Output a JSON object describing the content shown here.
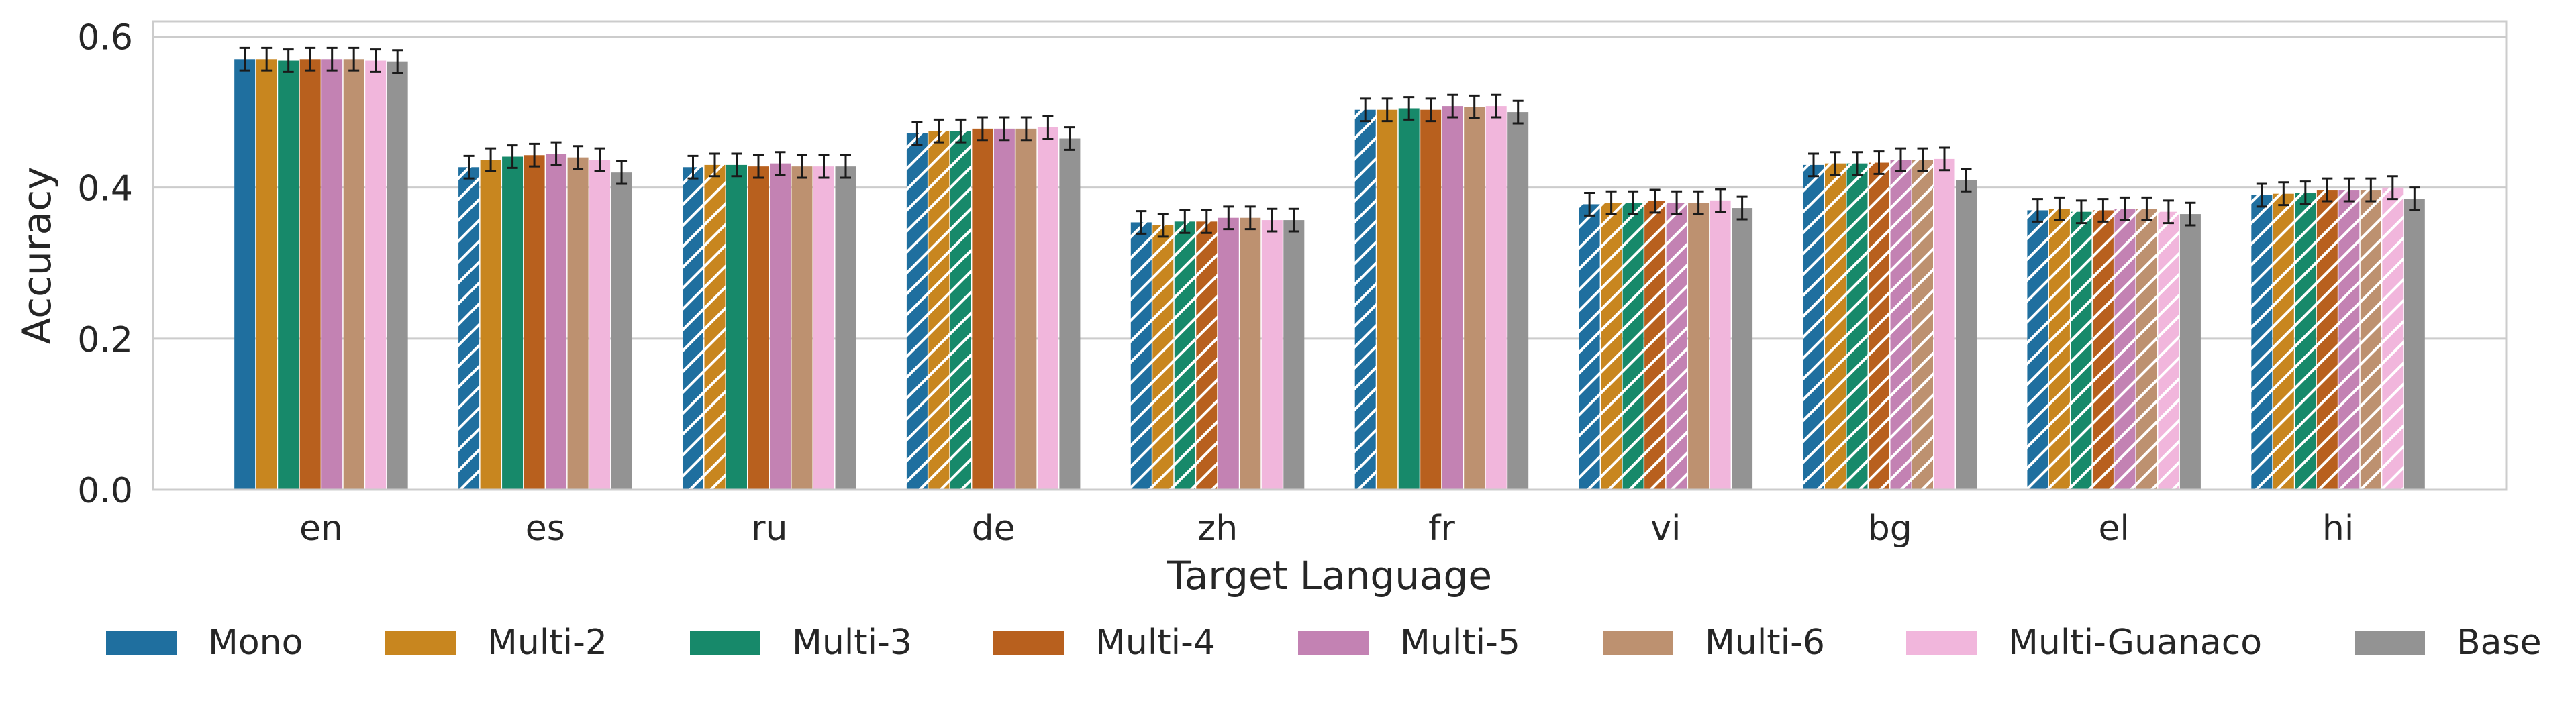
{
  "chart_data": {
    "type": "bar",
    "xlabel": "Target Language",
    "ylabel": "Accuracy",
    "ylim": [
      0,
      0.62
    ],
    "yticks": [
      0.0,
      0.2,
      0.4,
      0.6
    ],
    "ytick_labels": [
      "0.0",
      "0.2",
      "0.4",
      "0.6"
    ],
    "grid": true,
    "legend_position": "bottom",
    "categories": [
      "en",
      "es",
      "ru",
      "de",
      "zh",
      "fr",
      "vi",
      "bg",
      "el",
      "hi"
    ],
    "hatch_note": "Hatched bars = non-English target for models; hatched pattern applied on non-en groups for languages not in that model's training mix",
    "series": [
      {
        "name": "Mono",
        "color": "#1f6f9f",
        "values": [
          0.57,
          0.427,
          0.427,
          0.472,
          0.354,
          0.503,
          0.378,
          0.43,
          0.37,
          0.39
        ],
        "errors": [
          0.015,
          0.015,
          0.015,
          0.015,
          0.015,
          0.015,
          0.015,
          0.015,
          0.015,
          0.015
        ],
        "hatched": [
          false,
          true,
          true,
          true,
          true,
          true,
          true,
          true,
          true,
          true
        ]
      },
      {
        "name": "Multi-2",
        "color": "#c8861f",
        "values": [
          0.57,
          0.437,
          0.43,
          0.475,
          0.35,
          0.503,
          0.38,
          0.432,
          0.372,
          0.392
        ],
        "errors": [
          0.015,
          0.015,
          0.015,
          0.015,
          0.015,
          0.015,
          0.015,
          0.015,
          0.015,
          0.015
        ],
        "hatched": [
          false,
          false,
          true,
          true,
          true,
          false,
          true,
          true,
          true,
          true
        ]
      },
      {
        "name": "Multi-3",
        "color": "#17896a",
        "values": [
          0.568,
          0.441,
          0.43,
          0.475,
          0.355,
          0.505,
          0.38,
          0.432,
          0.368,
          0.393
        ],
        "errors": [
          0.015,
          0.015,
          0.015,
          0.015,
          0.015,
          0.015,
          0.015,
          0.015,
          0.015,
          0.015
        ],
        "hatched": [
          false,
          false,
          false,
          true,
          true,
          false,
          true,
          true,
          true,
          true
        ]
      },
      {
        "name": "Multi-4",
        "color": "#b8601e",
        "values": [
          0.57,
          0.443,
          0.428,
          0.478,
          0.355,
          0.503,
          0.382,
          0.433,
          0.37,
          0.397
        ],
        "errors": [
          0.015,
          0.015,
          0.015,
          0.015,
          0.015,
          0.015,
          0.015,
          0.015,
          0.015,
          0.015
        ],
        "hatched": [
          false,
          false,
          false,
          false,
          true,
          false,
          true,
          true,
          true,
          true
        ]
      },
      {
        "name": "Multi-5",
        "color": "#c382b3",
        "values": [
          0.57,
          0.445,
          0.432,
          0.478,
          0.36,
          0.508,
          0.38,
          0.437,
          0.372,
          0.397
        ],
        "errors": [
          0.015,
          0.015,
          0.015,
          0.015,
          0.015,
          0.015,
          0.015,
          0.015,
          0.015,
          0.015
        ],
        "hatched": [
          false,
          false,
          false,
          false,
          false,
          false,
          true,
          true,
          true,
          true
        ]
      },
      {
        "name": "Multi-6",
        "color": "#bd9170",
        "values": [
          0.57,
          0.44,
          0.428,
          0.478,
          0.36,
          0.507,
          0.38,
          0.437,
          0.372,
          0.397
        ],
        "errors": [
          0.015,
          0.015,
          0.015,
          0.015,
          0.015,
          0.015,
          0.015,
          0.015,
          0.015,
          0.015
        ],
        "hatched": [
          false,
          false,
          false,
          false,
          false,
          false,
          false,
          true,
          true,
          true
        ]
      },
      {
        "name": "Multi-Guanaco",
        "color": "#f1b6dc",
        "values": [
          0.568,
          0.437,
          0.428,
          0.48,
          0.357,
          0.508,
          0.383,
          0.438,
          0.368,
          0.4
        ],
        "errors": [
          0.015,
          0.015,
          0.015,
          0.015,
          0.015,
          0.015,
          0.015,
          0.015,
          0.015,
          0.015
        ],
        "hatched": [
          false,
          false,
          false,
          false,
          false,
          false,
          false,
          false,
          true,
          true
        ]
      },
      {
        "name": "Base",
        "color": "#939393",
        "values": [
          0.567,
          0.42,
          0.428,
          0.465,
          0.357,
          0.5,
          0.373,
          0.41,
          0.365,
          0.385
        ],
        "errors": [
          0.015,
          0.015,
          0.015,
          0.015,
          0.015,
          0.015,
          0.015,
          0.015,
          0.015,
          0.015
        ],
        "hatched": [
          false,
          false,
          false,
          false,
          false,
          false,
          false,
          false,
          false,
          false
        ]
      }
    ]
  }
}
